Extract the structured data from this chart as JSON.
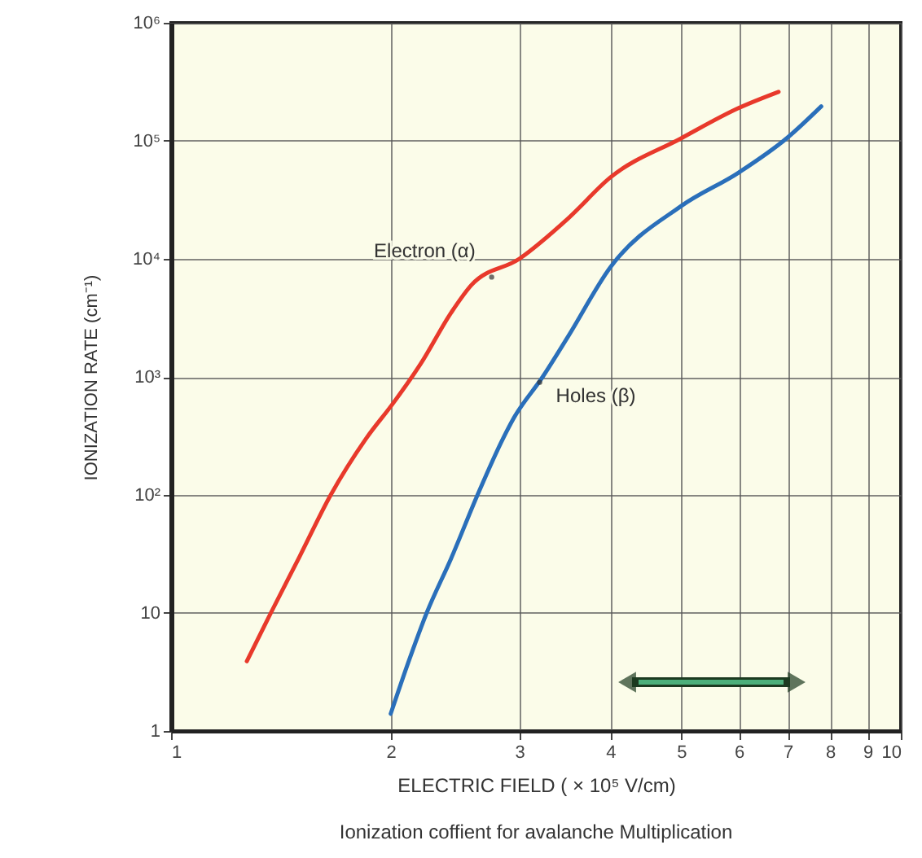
{
  "chart_data": {
    "type": "line",
    "xlabel": "ELECTRIC FIELD ( × 10⁵ V/cm)",
    "ylabel": "IONIZATION RATE (cm⁻¹)",
    "log": "xy",
    "grid": true,
    "line_style": "solid",
    "marker": "none",
    "xlim": [
      1,
      10
    ],
    "xticks": [
      1,
      2,
      3,
      4,
      5,
      6,
      7,
      8,
      9,
      10
    ],
    "ylim": [
      1,
      1000000
    ],
    "yticks": [
      1,
      10,
      {
        "value": 100,
        "label": "10²"
      },
      {
        "value": 1000,
        "label": "10³"
      },
      {
        "value": 10000,
        "label": "10⁴"
      },
      {
        "value": 100000,
        "label": "10⁵"
      },
      {
        "value": 1000000,
        "label": "10⁶"
      }
    ],
    "series": [
      {
        "color": "#e8392b",
        "x": [
          1.27,
          1.37,
          1.5,
          1.655,
          1.85,
          2.02,
          2.2,
          2.42,
          2.58,
          3,
          3.5,
          4,
          5,
          6,
          6.8
        ],
        "values": [
          3.9,
          10,
          30,
          100,
          300,
          610,
          1300,
          3500,
          6000,
          10000,
          22000,
          49000,
          105000,
          190000,
          260000
        ]
      },
      {
        "color": "#2a6fba",
        "x": [
          2,
          2.12,
          2.24,
          2.42,
          2.63,
          2.85,
          2.95,
          3.23,
          3.5,
          4,
          5,
          6,
          7,
          7.78
        ],
        "values": [
          1.4,
          4,
          10,
          29,
          100,
          300,
          450,
          1000,
          2200,
          8500,
          28000,
          54000,
          107000,
          196000
        ]
      }
    ],
    "annotations": [
      {
        "text": "Electron (α)",
        "x": 2.75,
        "y": 7000
      },
      {
        "text": "Holes (β)",
        "x": 3.2,
        "y": 900
      },
      "Ionization coffient for avalanche Multiplication"
    ]
  }
}
